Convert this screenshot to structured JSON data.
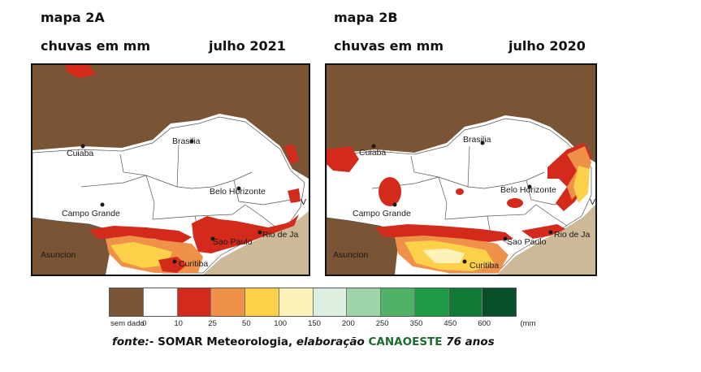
{
  "map_a": {
    "title": "mapa 2A",
    "subtitle": "chuvas em mm",
    "period": "julho 2021",
    "cities": [
      "Cuiaba",
      "Brasilia",
      "Campo Grande",
      "Belo Horizonte",
      "Sao Paulo",
      "Rio de Ja",
      "Curitiba",
      "Asuncion",
      "V"
    ]
  },
  "map_b": {
    "title": "mapa 2B",
    "subtitle": "chuvas em mm",
    "period": "julho 2020",
    "cities": [
      "Cuiaba",
      "Brasilia",
      "Campo Grande",
      "Belo Horizonte",
      "Sao Paulo",
      "Rio de Ja",
      "Curitiba",
      "Asuncion",
      "V"
    ]
  },
  "legend": {
    "unit": "(mm",
    "classes": [
      {
        "label": "sem dado",
        "color": "#7a5535"
      },
      {
        "label": "0",
        "color": "#ffffff"
      },
      {
        "label": "10",
        "color": "#d42a1c"
      },
      {
        "label": "25",
        "color": "#f0914a"
      },
      {
        "label": "50",
        "color": "#fdd04a"
      },
      {
        "label": "100",
        "color": "#fdf2b8"
      },
      {
        "label": "150",
        "color": "#dcefe0"
      },
      {
        "label": "200",
        "color": "#9fd3a8"
      },
      {
        "label": "250",
        "color": "#4fb266"
      },
      {
        "label": "350",
        "color": "#1f9a47"
      },
      {
        "label": "450",
        "color": "#0e7a35"
      },
      {
        "label": "600",
        "color": "#08502a"
      }
    ]
  },
  "source": {
    "prefix": "fonte:",
    "middle": "- SOMAR Meteorologia,",
    "elab": "elaboração",
    "brand": "CANAOESTE",
    "years": "76 anos"
  },
  "colors": {
    "nodata": "#7a5535",
    "ocean": "#cdb998",
    "red": "#d42a1c",
    "orange": "#f0914a",
    "yellow": "#fdd04a",
    "pale": "#fdf2b8"
  }
}
